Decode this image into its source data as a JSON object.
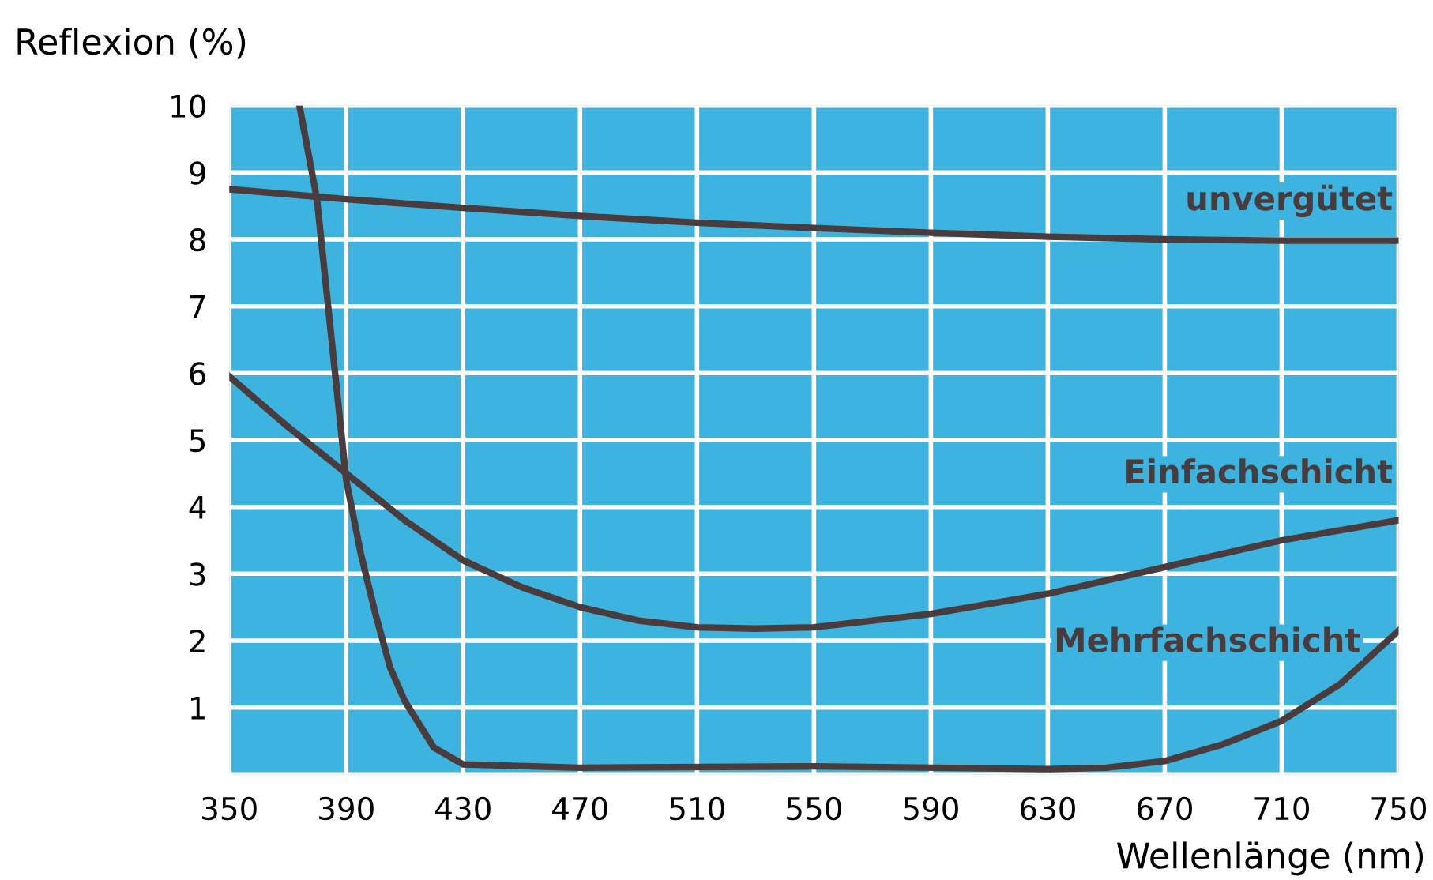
{
  "chart_data": {
    "type": "line",
    "ylabel": "Reflexion (%)",
    "xlabel": "Wellenlänge (nm)",
    "xlim": [
      350,
      750
    ],
    "xticks": [
      350,
      390,
      430,
      470,
      510,
      550,
      590,
      630,
      670,
      710,
      750
    ],
    "ylim": [
      0,
      10
    ],
    "yticks": [
      {
        "value": 0,
        "label": null
      },
      1,
      2,
      3,
      4,
      5,
      6,
      7,
      8,
      9,
      10
    ],
    "grid": true,
    "marker": "none",
    "line_style": "solid",
    "series": [
      {
        "name": "unvergütet",
        "color": "#4a3b3d",
        "x": [
          350,
          390,
          430,
          470,
          510,
          550,
          590,
          630,
          670,
          710,
          750
        ],
        "values": [
          8.75,
          8.6,
          8.47,
          8.35,
          8.25,
          8.17,
          8.1,
          8.04,
          8.0,
          7.98,
          7.98
        ]
      },
      {
        "name": "Einfachschicht",
        "color": "#4a3b3d",
        "x": [
          350,
          370,
          390,
          410,
          430,
          450,
          470,
          490,
          510,
          530,
          550,
          590,
          630,
          670,
          710,
          750
        ],
        "values": [
          5.95,
          5.2,
          4.5,
          3.8,
          3.2,
          2.8,
          2.5,
          2.3,
          2.2,
          2.18,
          2.2,
          2.4,
          2.7,
          3.1,
          3.5,
          3.8
        ]
      },
      {
        "name": "Mehrfachschicht",
        "color": "#4a3b3d",
        "x": [
          374,
          380,
          385,
          390,
          395,
          400,
          405,
          410,
          420,
          430,
          470,
          550,
          630,
          650,
          670,
          690,
          710,
          730,
          750
        ],
        "values": [
          10,
          8.6,
          6.5,
          4.4,
          3.3,
          2.4,
          1.6,
          1.1,
          0.4,
          0.15,
          0.1,
          0.12,
          0.08,
          0.1,
          0.2,
          0.45,
          0.8,
          1.35,
          2.15
        ]
      }
    ]
  }
}
